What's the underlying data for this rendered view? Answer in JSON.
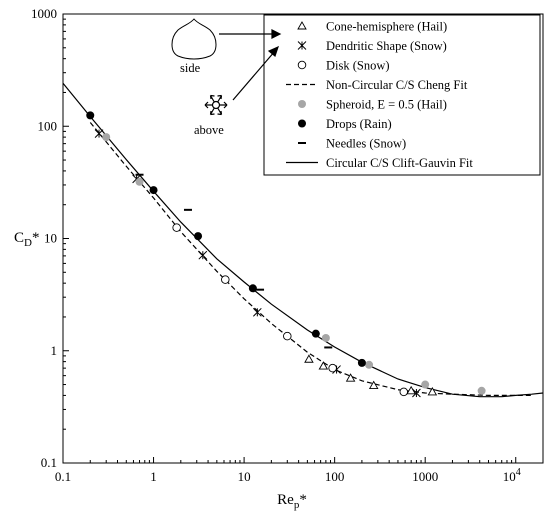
{
  "chart_data": {
    "type": "scatter",
    "xscale": "log",
    "yscale": "log",
    "xlim": [
      0.1,
      20000
    ],
    "ylim": [
      0.1,
      1000
    ],
    "xlabel_main": "Re",
    "xlabel_sub": "p",
    "xlabel_suffix": "*",
    "ylabel_main": "C",
    "ylabel_sub": "D",
    "ylabel_suffix": "*",
    "x_ticks": [
      {
        "value": 0.1,
        "label": "0.1"
      },
      {
        "value": 1,
        "label": "1"
      },
      {
        "value": 10,
        "label": "10"
      },
      {
        "value": 100,
        "label": "100"
      },
      {
        "value": 1000,
        "label": "1000"
      }
    ],
    "x_tick_last": {
      "value": 10000,
      "base": "10",
      "exp": "4"
    },
    "y_ticks": [
      {
        "value": 0.1,
        "label": "0.1"
      },
      {
        "value": 1,
        "label": "1"
      },
      {
        "value": 10,
        "label": "10"
      },
      {
        "value": 100,
        "label": "100"
      },
      {
        "value": 1000,
        "label": "1000"
      }
    ],
    "series": [
      {
        "name": "Cone-hemisphere (Hail)",
        "marker": "triangle",
        "points": [
          [
            52,
            0.84
          ],
          [
            75,
            0.73
          ],
          [
            150,
            0.57
          ],
          [
            270,
            0.49
          ],
          [
            700,
            0.44
          ],
          [
            1200,
            0.43
          ]
        ]
      },
      {
        "name": "Dendritic Shape (Snow)",
        "marker": "asterisk",
        "points": [
          [
            0.25,
            86
          ],
          [
            0.65,
            34
          ],
          [
            3.5,
            7.1
          ],
          [
            14,
            2.2
          ],
          [
            105,
            0.68
          ],
          [
            800,
            0.42
          ]
        ]
      },
      {
        "name": "Disk (Snow)",
        "marker": "open-circle",
        "points": [
          [
            1.8,
            12.5
          ],
          [
            6.2,
            4.3
          ],
          [
            30,
            1.35
          ],
          [
            95,
            0.7
          ],
          [
            580,
            0.43
          ]
        ]
      },
      {
        "name": "Non-Circular C/S Cheng Fit",
        "marker": "dashed-line"
      },
      {
        "name": "Spheroid, E = 0.5 (Hail)",
        "marker": "gray-circle",
        "points": [
          [
            0.3,
            80
          ],
          [
            0.7,
            32
          ],
          [
            80,
            1.3
          ],
          [
            240,
            0.75
          ],
          [
            1000,
            0.5
          ],
          [
            4200,
            0.44
          ]
        ]
      },
      {
        "name": "Drops (Rain)",
        "marker": "filled-circle",
        "points": [
          [
            0.2,
            125
          ],
          [
            1.0,
            27
          ],
          [
            3.1,
            10.5
          ],
          [
            12.5,
            3.6
          ],
          [
            62,
            1.42
          ],
          [
            200,
            0.78
          ]
        ]
      },
      {
        "name": "Needles (Snow)",
        "marker": "dash",
        "points": [
          [
            0.7,
            37
          ],
          [
            2.4,
            18
          ],
          [
            15,
            3.5
          ],
          [
            85,
            1.07
          ]
        ]
      },
      {
        "name": "Circular C/S Clift-Gauvin Fit",
        "marker": "solid-line"
      }
    ],
    "clift_gauvin_fit": {
      "x": [
        0.1,
        0.2,
        0.5,
        1,
        2,
        5,
        10,
        20,
        50,
        100,
        200,
        500,
        1000,
        2000,
        4000,
        7000,
        10000,
        15000,
        20000
      ],
      "y": [
        242,
        122,
        50.5,
        26.4,
        14.0,
        6.6,
        4.1,
        2.6,
        1.53,
        1.08,
        0.79,
        0.56,
        0.47,
        0.41,
        0.39,
        0.39,
        0.4,
        0.41,
        0.42
      ]
    },
    "cheng_fit": {
      "x": [
        0.2,
        0.5,
        1,
        2,
        5,
        10,
        20,
        50,
        100,
        200,
        500,
        1000,
        2000,
        5000,
        15000
      ],
      "y": [
        108,
        44,
        23,
        11.5,
        5.1,
        2.9,
        1.75,
        0.97,
        0.68,
        0.54,
        0.45,
        0.42,
        0.41,
        0.4,
        0.4
      ]
    },
    "insets": {
      "top_label": "side",
      "bottom_label": "above"
    }
  }
}
